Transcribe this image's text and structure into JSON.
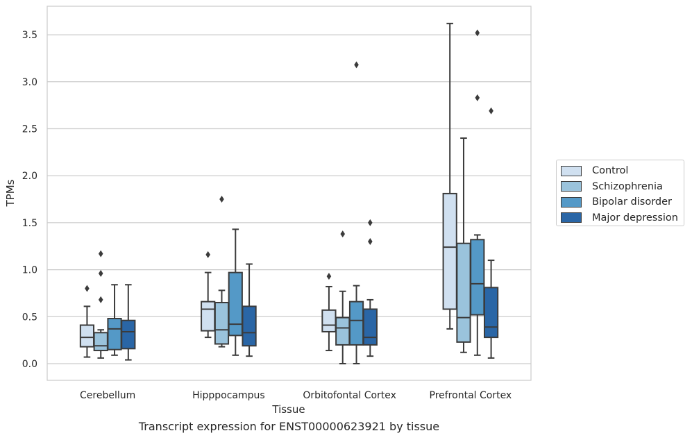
{
  "chart_data": {
    "type": "box",
    "title": "",
    "caption": "Transcript expression for ENST00000623921 by tissue",
    "xlabel": "Tissue",
    "ylabel": "TPMs",
    "ylim": [
      -0.17,
      3.77
    ],
    "yticks": [
      0.0,
      0.5,
      1.0,
      1.5,
      2.0,
      2.5,
      3.0,
      3.5
    ],
    "ytick_labels": [
      "0.0",
      "0.5",
      "1.0",
      "1.5",
      "2.0",
      "2.5",
      "3.0",
      "3.5"
    ],
    "grid": "horizontal",
    "legend_position": "right",
    "categories": [
      "Cerebellum",
      "Hipppocampus",
      "Orbitofontal Cortex",
      "Prefrontal Cortex"
    ],
    "series": [
      {
        "name": "Control",
        "color": "#d0e0f0",
        "boxes": [
          {
            "whislo": 0.07,
            "q1": 0.18,
            "med": 0.28,
            "q3": 0.41,
            "whishi": 0.61,
            "fliers": [
              0.8
            ]
          },
          {
            "whislo": 0.28,
            "q1": 0.35,
            "med": 0.58,
            "q3": 0.66,
            "whishi": 0.97,
            "fliers": [
              1.16
            ]
          },
          {
            "whislo": 0.14,
            "q1": 0.34,
            "med": 0.41,
            "q3": 0.57,
            "whishi": 0.82,
            "fliers": [
              0.93
            ]
          },
          {
            "whislo": 0.37,
            "q1": 0.58,
            "med": 1.24,
            "q3": 1.81,
            "whishi": 3.62,
            "fliers": []
          }
        ]
      },
      {
        "name": "Schizophrenia",
        "color": "#9ac3dc",
        "boxes": [
          {
            "whislo": 0.06,
            "q1": 0.14,
            "med": 0.19,
            "q3": 0.33,
            "whishi": 0.36,
            "fliers": [
              0.68,
              0.96,
              1.17
            ]
          },
          {
            "whislo": 0.18,
            "q1": 0.21,
            "med": 0.36,
            "q3": 0.65,
            "whishi": 0.78,
            "fliers": [
              1.75
            ]
          },
          {
            "whislo": 0.0,
            "q1": 0.2,
            "med": 0.38,
            "q3": 0.49,
            "whishi": 0.77,
            "fliers": [
              1.38
            ]
          },
          {
            "whislo": 0.12,
            "q1": 0.23,
            "med": 0.49,
            "q3": 1.28,
            "whishi": 2.4,
            "fliers": []
          }
        ]
      },
      {
        "name": "Bipolar disorder",
        "color": "#5499c7",
        "boxes": [
          {
            "whislo": 0.09,
            "q1": 0.15,
            "med": 0.37,
            "q3": 0.48,
            "whishi": 0.84,
            "fliers": []
          },
          {
            "whislo": 0.09,
            "q1": 0.3,
            "med": 0.42,
            "q3": 0.97,
            "whishi": 1.43,
            "fliers": []
          },
          {
            "whislo": 0.0,
            "q1": 0.2,
            "med": 0.46,
            "q3": 0.66,
            "whishi": 0.83,
            "fliers": [
              3.18
            ]
          },
          {
            "whislo": 0.09,
            "q1": 0.52,
            "med": 0.85,
            "q3": 1.32,
            "whishi": 1.37,
            "fliers": [
              2.83,
              3.52
            ]
          }
        ]
      },
      {
        "name": "Major depression",
        "color": "#2a66a6",
        "boxes": [
          {
            "whislo": 0.04,
            "q1": 0.16,
            "med": 0.34,
            "q3": 0.46,
            "whishi": 0.84,
            "fliers": []
          },
          {
            "whislo": 0.08,
            "q1": 0.19,
            "med": 0.33,
            "q3": 0.61,
            "whishi": 1.06,
            "fliers": []
          },
          {
            "whislo": 0.08,
            "q1": 0.2,
            "med": 0.28,
            "q3": 0.58,
            "whishi": 0.68,
            "fliers": [
              1.3,
              1.5
            ]
          },
          {
            "whislo": 0.06,
            "q1": 0.28,
            "med": 0.39,
            "q3": 0.81,
            "whishi": 1.1,
            "fliers": [
              2.69
            ]
          }
        ]
      }
    ]
  }
}
